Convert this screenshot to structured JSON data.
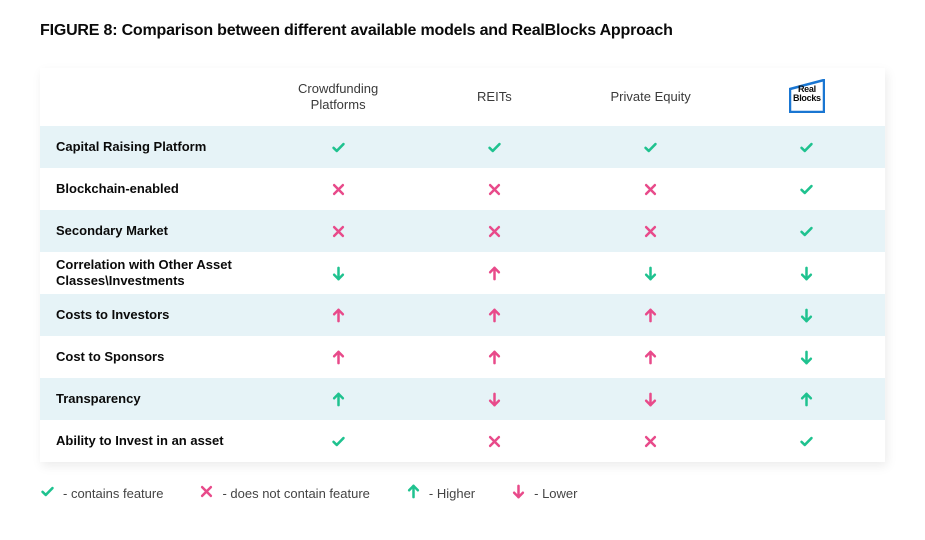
{
  "title": "FIGURE 8: Comparison between different available models and RealBlocks Approach",
  "colors": {
    "green": "#1fc28f",
    "pink": "#e84a8a",
    "row_alt_bg": "#e6f3f7",
    "row_plain_bg": "#ffffff",
    "text": "#0a0a0a",
    "logo_border": "#1976d2"
  },
  "columns": [
    {
      "key": "crowdfunding",
      "label": "Crowdfunding Platforms"
    },
    {
      "key": "reits",
      "label": "REITs"
    },
    {
      "key": "pe",
      "label": "Private Equity"
    },
    {
      "key": "realblocks",
      "label": "RealBlocks",
      "is_logo": true,
      "logo_line1": "Real",
      "logo_line2": "Blocks"
    }
  ],
  "rows": [
    {
      "label": "Capital Raising Platform",
      "alt": true,
      "cells": [
        "check",
        "check",
        "check",
        "check"
      ]
    },
    {
      "label": "Blockchain-enabled",
      "alt": false,
      "cells": [
        "cross",
        "cross",
        "cross",
        "check"
      ]
    },
    {
      "label": "Secondary Market",
      "alt": true,
      "cells": [
        "cross",
        "cross",
        "cross",
        "check"
      ]
    },
    {
      "label": "Correlation with Other Asset Classes\\Investments",
      "alt": false,
      "cells": [
        "down_g",
        "up_p",
        "down_g",
        "down_g"
      ]
    },
    {
      "label": "Costs to Investors",
      "alt": true,
      "cells": [
        "up_p",
        "up_p",
        "up_p",
        "down_g"
      ]
    },
    {
      "label": "Cost to Sponsors",
      "alt": false,
      "cells": [
        "up_p",
        "up_p",
        "up_p",
        "down_g"
      ]
    },
    {
      "label": "Transparency",
      "alt": true,
      "cells": [
        "up_g",
        "down_p",
        "down_p",
        "up_g"
      ]
    },
    {
      "label": "Ability to Invest in an asset",
      "alt": false,
      "cells": [
        "check",
        "cross",
        "cross",
        "check"
      ]
    }
  ],
  "legend": [
    {
      "icon": "check",
      "text": "- contains feature"
    },
    {
      "icon": "cross",
      "text": "- does not contain feature"
    },
    {
      "icon": "up_g",
      "text": "- Higher"
    },
    {
      "icon": "down_p",
      "text": "- Lower"
    }
  ],
  "icon_size": 15,
  "arrow_size": 15
}
